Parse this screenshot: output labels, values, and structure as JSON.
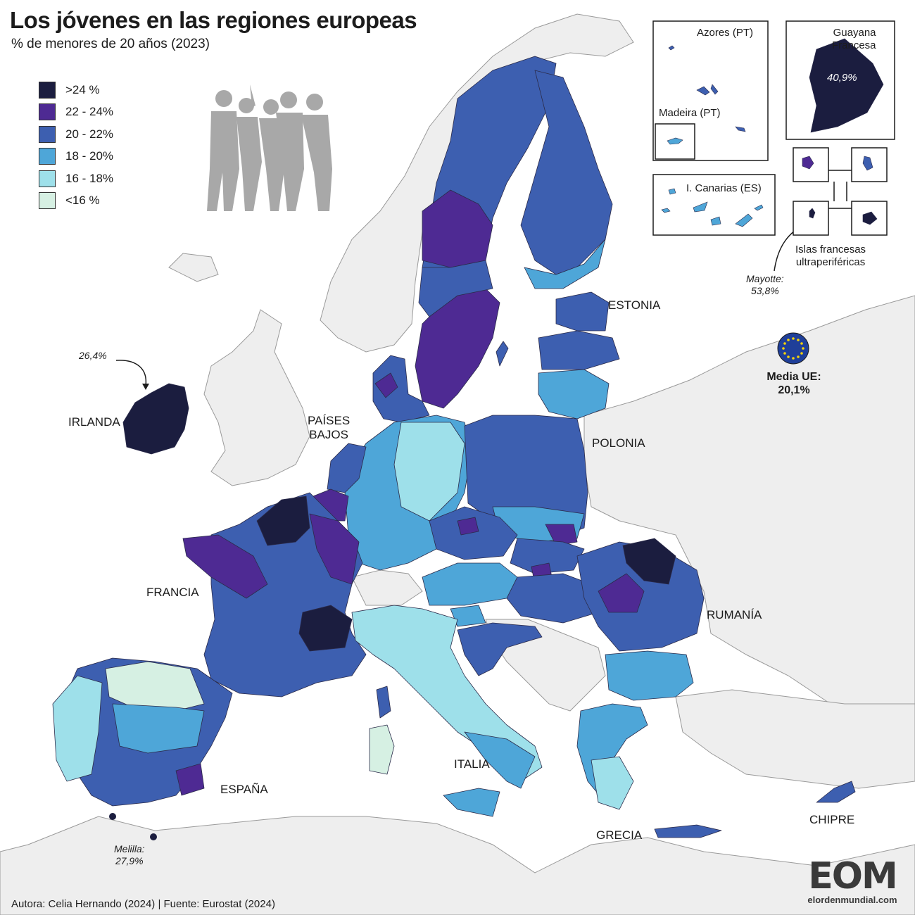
{
  "title": "Los jóvenes en las regiones europeas",
  "subtitle": "% de menores de 20 años (2023)",
  "legend": [
    {
      "label": ">24 %",
      "color": "#1b1d3f"
    },
    {
      "label": "22 - 24%",
      "color": "#4e2a93"
    },
    {
      "label": "20 - 22%",
      "color": "#3d5fb0"
    },
    {
      "label": "18 - 20%",
      "color": "#4ea6d8"
    },
    {
      "label": "16 - 18%",
      "color": "#9ee0ea"
    },
    {
      "label": "<16 %",
      "color": "#d6f0e3"
    }
  ],
  "country_labels": {
    "irlanda": "IRLANDA",
    "paises_bajos": "PAÍSES\nBAJOS",
    "francia": "FRANCIA",
    "espana": "ESPAÑA",
    "italia": "ITALIA",
    "grecia": "GRECIA",
    "chipre": "CHIPRE",
    "estonia": "ESTONIA",
    "polonia": "POLONIA",
    "rumania": "RUMANÍA"
  },
  "annotations": {
    "irlanda_value": "26,4%",
    "melilla": "Melilla:\n27,9%",
    "mayotte": "Mayotte:\n53,8%",
    "guayana_value": "40,9%"
  },
  "insets": {
    "azores": "Azores (PT)",
    "madeira": "Madeira (PT)",
    "canarias": "I. Canarias (ES)",
    "guayana": "Guayana\nFrancesa",
    "francesas": "Islas francesas\nultraperiféricas"
  },
  "eu_mean": {
    "label": "Media UE:",
    "value": "20,1%"
  },
  "footer": "Autora: Celia Hernando (2024) | Fuente: Eurostat  (2024)",
  "logo": {
    "mark": "EOM",
    "url": "elordenmundial.com"
  },
  "colors": {
    "sea": "#ffffff",
    "non_eu": "#eeeeee",
    "border": "#8e8e8e",
    "region_border": "#2b2b4a"
  }
}
